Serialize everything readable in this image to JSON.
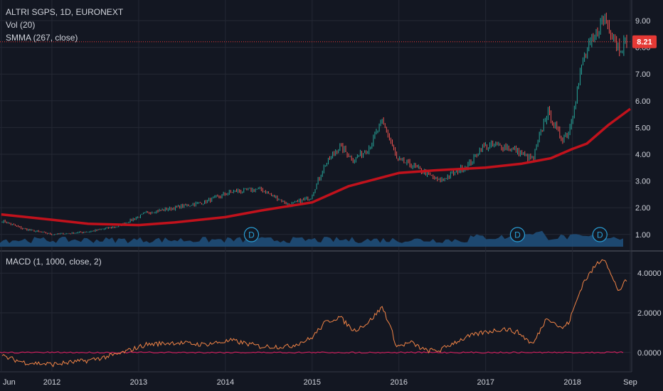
{
  "header": {
    "symbol_line": "ALTRI SGPS, 1D, EURONEXT",
    "volume_label": "Vol (20)",
    "smma_label": "SMMA (267, close)",
    "macd_label": "MACD (1, 1000, close, 2)"
  },
  "price_tag": "8.21",
  "dividend_marker": "D",
  "colors": {
    "background": "#131722",
    "grid": "#242834",
    "text": "#d1d4dc",
    "candle_up": "#26a69a",
    "candle_down": "#ef5350",
    "smma": "#c1121c",
    "volume": "#1f4e79",
    "macd_line": "#f28446",
    "signal_line": "#e91e63",
    "price_tag_bg": "#e53935"
  },
  "chart_data": [
    {
      "type": "line",
      "panel": "price",
      "title": "ALTRI SGPS, 1D, EURONEXT",
      "x_ticks": [
        "Jun",
        "2012",
        "2013",
        "2014",
        "2015",
        "2016",
        "2017",
        "2018",
        "Sep"
      ],
      "y_ticks": [
        "1.00",
        "2.00",
        "3.00",
        "4.00",
        "5.00",
        "6.00",
        "7.00",
        "8.00",
        "9.00"
      ],
      "ylim": [
        0.6,
        9.2
      ],
      "last_price": 8.21,
      "series": [
        {
          "name": "ALTRI SGPS",
          "x": [
            "2011-06",
            "2011-09",
            "2012-01",
            "2012-06",
            "2012-10",
            "2013-02",
            "2013-06",
            "2013-10",
            "2014-02",
            "2014-06",
            "2014-10",
            "2015-01",
            "2015-03",
            "2015-05",
            "2015-07",
            "2015-09",
            "2015-11",
            "2015-12",
            "2016-01",
            "2016-03",
            "2016-05",
            "2016-07",
            "2016-09",
            "2016-11",
            "2017-01",
            "2017-04",
            "2017-06",
            "2017-08",
            "2017-10",
            "2017-12",
            "2018-01",
            "2018-03",
            "2018-05",
            "2018-06",
            "2018-07",
            "2018-08",
            "2018-09"
          ],
          "values": [
            1.5,
            1.2,
            1.0,
            1.1,
            1.3,
            1.8,
            2.0,
            2.2,
            2.6,
            2.7,
            2.1,
            2.4,
            3.6,
            4.3,
            3.8,
            4.2,
            5.2,
            4.6,
            3.8,
            3.6,
            3.3,
            3.0,
            3.3,
            3.6,
            4.3,
            4.3,
            4.1,
            3.8,
            5.6,
            4.6,
            4.8,
            7.5,
            8.6,
            9.1,
            8.6,
            8.0,
            8.21
          ]
        },
        {
          "name": "SMMA (267, close)",
          "x": [
            "2011-06",
            "2012-01",
            "2012-06",
            "2013-01",
            "2013-06",
            "2014-01",
            "2014-06",
            "2015-01",
            "2015-06",
            "2016-01",
            "2016-06",
            "2017-01",
            "2017-06",
            "2017-10",
            "2018-01",
            "2018-03",
            "2018-06",
            "2018-09"
          ],
          "values": [
            1.75,
            1.55,
            1.4,
            1.35,
            1.45,
            1.65,
            1.9,
            2.2,
            2.8,
            3.3,
            3.4,
            3.5,
            3.65,
            3.85,
            4.2,
            4.4,
            5.1,
            5.7
          ]
        }
      ]
    },
    {
      "type": "area",
      "panel": "volume",
      "title": "Vol (20)"
    },
    {
      "type": "line",
      "panel": "macd",
      "title": "MACD (1, 1000, close, 2)",
      "y_ticks": [
        "0.0000",
        "2.0000",
        "4.0000"
      ],
      "ylim": [
        -0.8,
        5.0
      ],
      "series": [
        {
          "name": "MACD",
          "x": [
            "2011-06",
            "2011-09",
            "2012-01",
            "2012-06",
            "2012-10",
            "2013-02",
            "2013-06",
            "2013-10",
            "2014-02",
            "2014-06",
            "2014-10",
            "2015-01",
            "2015-03",
            "2015-05",
            "2015-07",
            "2015-09",
            "2015-11",
            "2015-12",
            "2016-01",
            "2016-03",
            "2016-05",
            "2016-07",
            "2016-09",
            "2016-11",
            "2017-01",
            "2017-04",
            "2017-06",
            "2017-08",
            "2017-10",
            "2017-12",
            "2018-01",
            "2018-03",
            "2018-05",
            "2018-06",
            "2018-07",
            "2018-08",
            "2018-09"
          ],
          "values": [
            -0.2,
            -0.5,
            -0.6,
            -0.4,
            -0.1,
            0.4,
            0.5,
            0.4,
            0.6,
            0.3,
            0.3,
            0.7,
            1.5,
            1.8,
            1.1,
            1.5,
            2.3,
            1.4,
            0.3,
            0.5,
            0.1,
            0.1,
            0.5,
            0.8,
            1.0,
            1.2,
            1.0,
            0.4,
            1.8,
            1.2,
            1.5,
            3.5,
            4.5,
            4.8,
            3.8,
            3.1,
            3.6
          ]
        },
        {
          "name": "Signal",
          "x": [
            "2011-06",
            "2018-09"
          ],
          "values": [
            0.0,
            0.0
          ]
        }
      ]
    }
  ]
}
